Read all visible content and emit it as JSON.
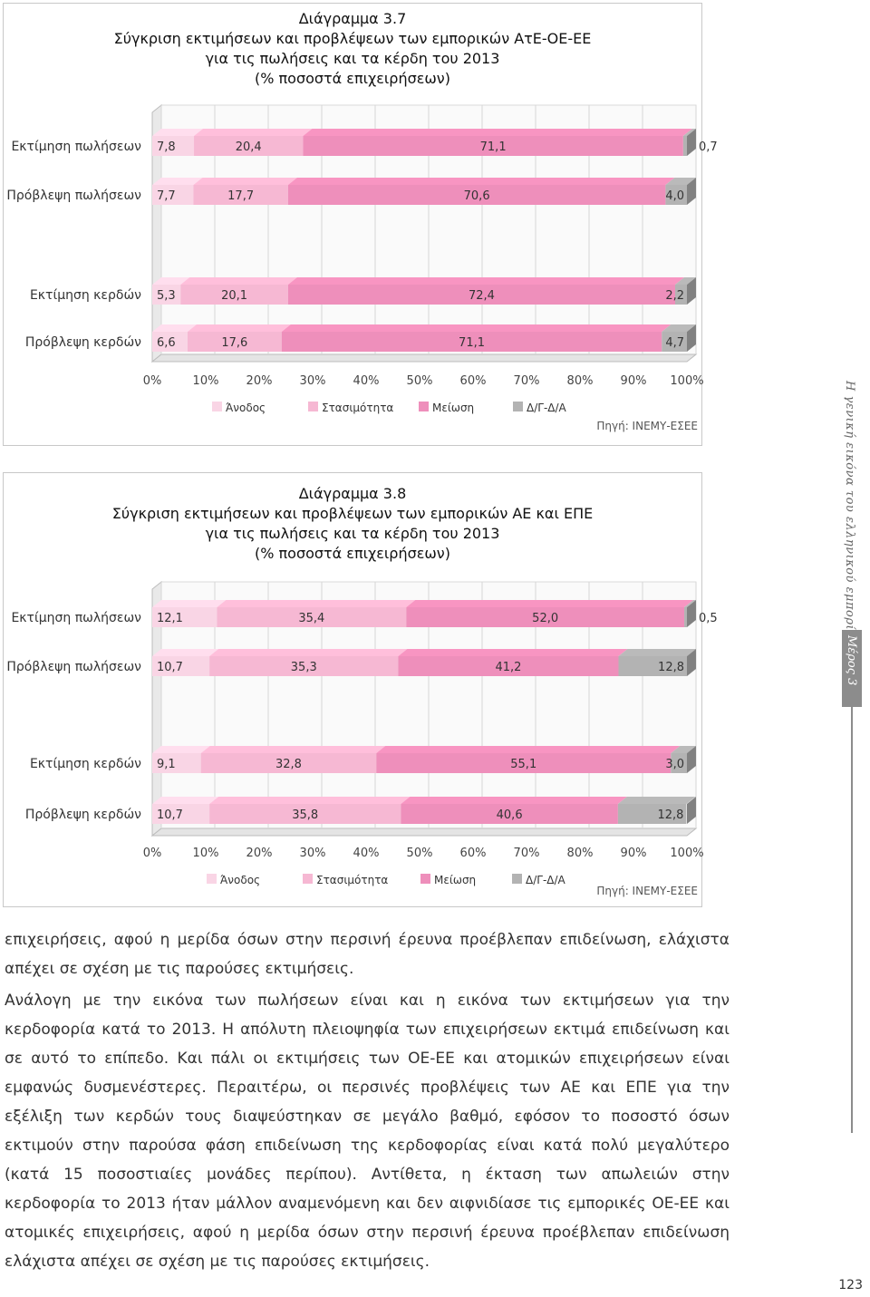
{
  "page": {
    "paragraphs": [
      "επιχειρήσεις, αφού η μερίδα όσων στην περσινή έρευνα προέβλεπαν επιδείνωση, ελάχιστα απέχει σε σχέση με τις παρούσες εκτιμήσεις.",
      "Ανάλογη με την εικόνα των πωλήσεων είναι και η εικόνα των εκτιμήσεων για την κερδοφορία κατά το 2013. Η απόλυτη πλειοψηφία των επιχειρήσεων εκτιμά επιδείνωση και σε αυτό το επίπεδο. Και πάλι οι εκτιμήσεις των ΟΕ-ΕΕ και ατομικών επιχειρήσεων είναι εμφανώς δυσμενέστερες. Περαιτέρω, οι περσινές προβλέψεις των ΑΕ και ΕΠΕ για την εξέλιξη των κερδών τους διαψεύστηκαν σε μεγάλο βαθμό, εφόσον το ποσοστό όσων εκτιμούν στην παρούσα φάση επιδείνωση της κερδοφορίας είναι κατά πολύ μεγαλύτερο (κατά 15 ποσοστιαίες μονάδες περίπου). Αντίθετα, η έκταση των απωλειών στην κερδοφορία το 2013 ήταν μάλλον αναμενόμενη και δεν αιφνιδίασε τις εμπορικές ΟΕ-ΕΕ και ατομικές επιχειρήσεις, αφού η μερίδα όσων στην περσινή έρευνα προέβλεπαν επιδείνωση ελάχιστα απέχει σε σχέση με τις παρούσες εκτιμήσεις."
    ],
    "side_caption": "Η γενική εικόνα του ελληνικού εμπορίου",
    "section_label": "Μέρος 3",
    "page_number": "123"
  },
  "colors": {
    "anodos": "#f9d5e5",
    "stasimotita": "#f6b8d3",
    "meiosi": "#ee8fbb",
    "dgda": "#b3b3b3",
    "grid": "#d6d6d6",
    "axis": "#888888"
  },
  "chart_data": [
    {
      "type": "bar",
      "stacked": "horizontal-100%",
      "title_lines": [
        "Διάγραμμα 3.7",
        "Σύγκριση εκτιμήσεων και προβλέψεων των εμπορικών ΑτΕ-ΟΕ-ΕΕ",
        "για τις πωλήσεις και τα κέρδη του 2013",
        "(% ποσοστά επιχειρήσεων)"
      ],
      "categories": [
        "Εκτίμηση πωλήσεων",
        "Πρόβλεψη πωλήσεων",
        "Εκτίμηση κερδών",
        "Πρόβλεψη κερδών"
      ],
      "series": [
        {
          "name": "Άνοδος",
          "values": [
            7.8,
            7.7,
            5.3,
            6.6
          ],
          "labels": [
            "7,8",
            "7,7",
            "5,3",
            "6,6"
          ]
        },
        {
          "name": "Στασιμότητα",
          "values": [
            20.4,
            17.7,
            20.1,
            17.6
          ],
          "labels": [
            "20,4",
            "17,7",
            "20,1",
            "17,6"
          ]
        },
        {
          "name": "Μείωση",
          "values": [
            71.1,
            70.6,
            72.4,
            71.1
          ],
          "labels": [
            "71,1",
            "70,6",
            "72,4",
            "71,1"
          ]
        },
        {
          "name": "Δ/Γ-Δ/Α",
          "values": [
            0.7,
            4.0,
            2.2,
            4.7
          ],
          "labels": [
            "0,7",
            "4,0",
            "2,2",
            "4,7"
          ]
        }
      ],
      "xticks": [
        "0%",
        "10%",
        "20%",
        "30%",
        "40%",
        "50%",
        "60%",
        "70%",
        "80%",
        "90%",
        "100%"
      ],
      "xlim": [
        0,
        100
      ],
      "source": "Πηγή: ΙΝΕΜΥ-ΕΣΕΕ"
    },
    {
      "type": "bar",
      "stacked": "horizontal-100%",
      "title_lines": [
        "Διάγραμμα 3.8",
        "Σύγκριση εκτιμήσεων και προβλέψεων των εμπορικών ΑΕ και ΕΠΕ",
        "για τις πωλήσεις και τα κέρδη του 2013",
        "(% ποσοστά επιχειρήσεων)"
      ],
      "categories": [
        "Εκτίμηση πωλήσεων",
        "Πρόβλεψη πωλήσεων",
        "Εκτίμηση κερδών",
        "Πρόβλεψη κερδών"
      ],
      "series": [
        {
          "name": "Άνοδος",
          "values": [
            12.1,
            10.7,
            9.1,
            10.7
          ],
          "labels": [
            "12,1",
            "10,7",
            "9,1",
            "10,7"
          ]
        },
        {
          "name": "Στασιμότητα",
          "values": [
            35.4,
            35.3,
            32.8,
            35.8
          ],
          "labels": [
            "35,4",
            "35,3",
            "32,8",
            "35,8"
          ]
        },
        {
          "name": "Μείωση",
          "values": [
            52.0,
            41.2,
            55.1,
            40.6
          ],
          "labels": [
            "52,0",
            "41,2",
            "55,1",
            "40,6"
          ]
        },
        {
          "name": "Δ/Γ-Δ/Α",
          "values": [
            0.5,
            12.8,
            3.0,
            12.8
          ],
          "labels": [
            "0,5",
            "12,8",
            "3,0",
            "12,8"
          ]
        }
      ],
      "xticks": [
        "0%",
        "10%",
        "20%",
        "30%",
        "40%",
        "50%",
        "60%",
        "70%",
        "80%",
        "90%",
        "100%"
      ],
      "xlim": [
        0,
        100
      ],
      "source": "Πηγή: ΙΝΕΜΥ-ΕΣΕΕ"
    }
  ]
}
